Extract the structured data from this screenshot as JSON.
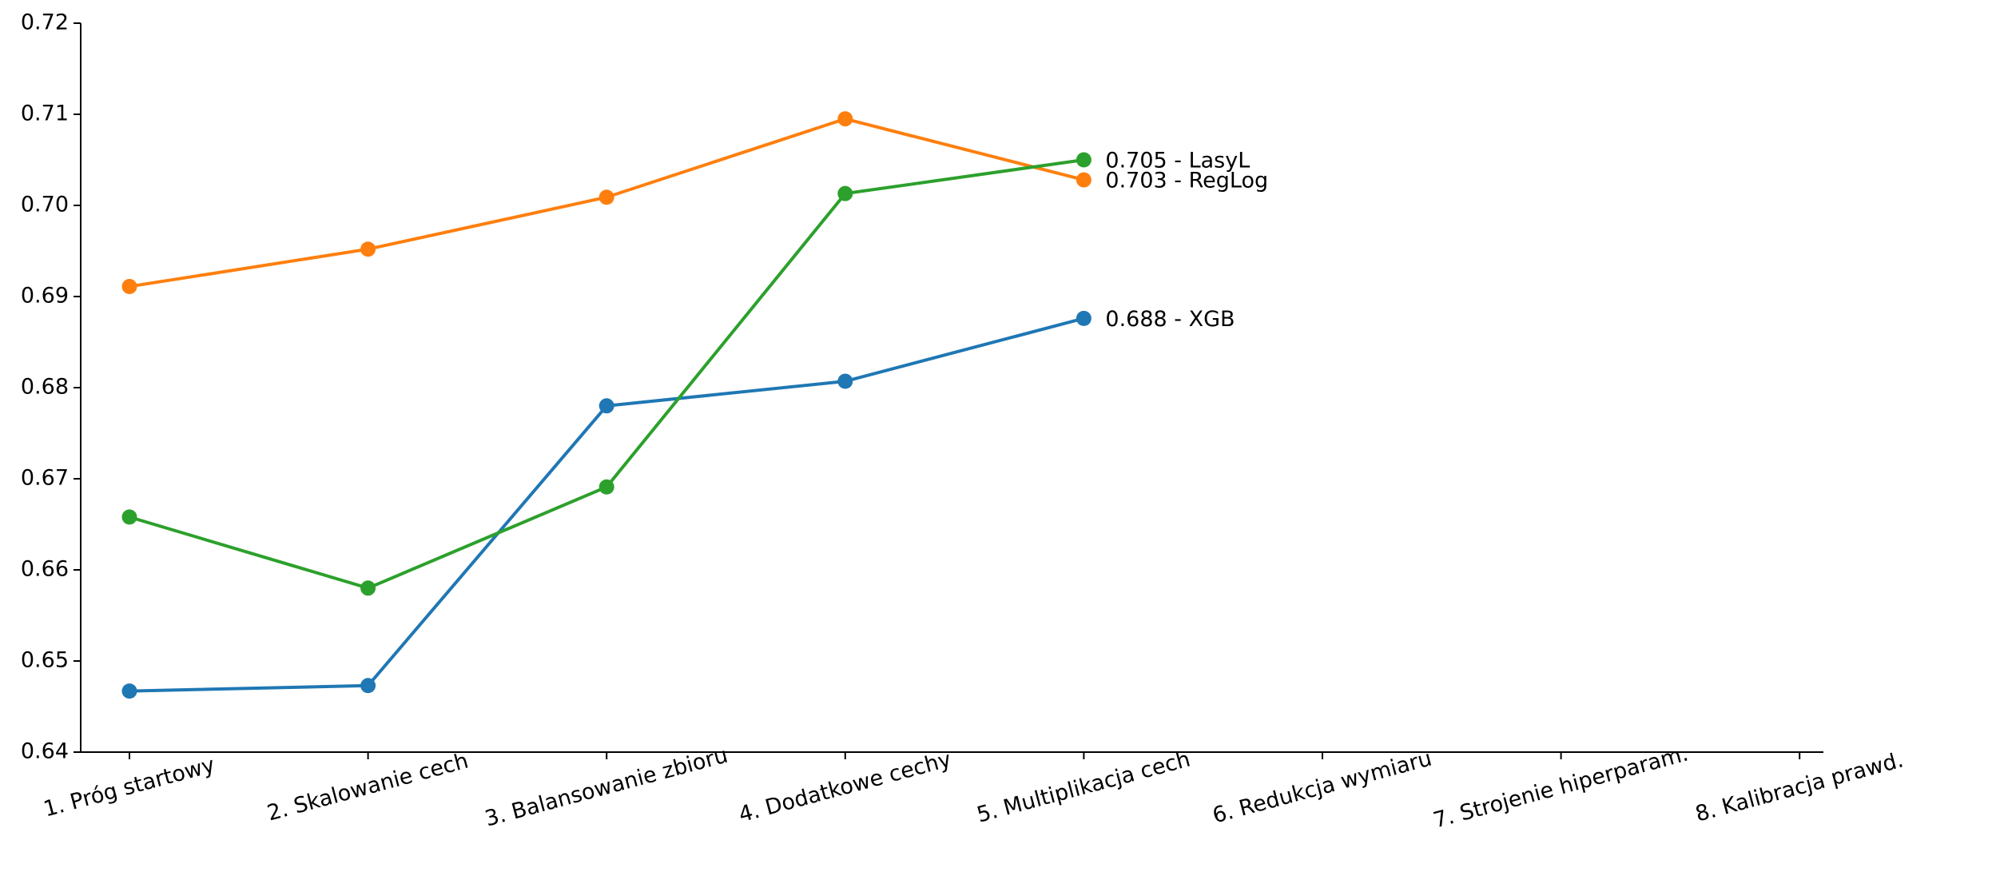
{
  "chart_data": {
    "type": "line",
    "categories": [
      "1. Próg startowy",
      "2. Skalowanie cech",
      "3. Balansowanie zbioru",
      "4. Dodatkowe cechy",
      "5. Multiplikacja cech",
      "6. Redukcja wymiaru",
      "7. Strojenie hiperparam.",
      "8. Kalibracja prawd."
    ],
    "series": [
      {
        "color": "#1f77b4",
        "end_label": "0.688 - XGB",
        "values": [
          0.6467,
          0.6473,
          0.678,
          0.6807,
          0.6876,
          null,
          null,
          null
        ]
      },
      {
        "color": "#ff7f0e",
        "end_label": "0.703 - RegLog",
        "values": [
          0.6911,
          0.6952,
          0.7009,
          0.7095,
          0.7028,
          null,
          null,
          null
        ]
      },
      {
        "color": "#2ca02c",
        "end_label": "0.705 - LasyL",
        "values": [
          0.6658,
          0.658,
          0.6691,
          0.7013,
          0.705,
          null,
          null,
          null
        ]
      }
    ],
    "ylim": [
      0.64,
      0.72
    ],
    "yticks": [
      0.64,
      0.65,
      0.66,
      0.67,
      0.68,
      0.69,
      {
        "value": 0.7,
        "label": "0.70"
      },
      0.71,
      0.72
    ],
    "grid": false
  }
}
